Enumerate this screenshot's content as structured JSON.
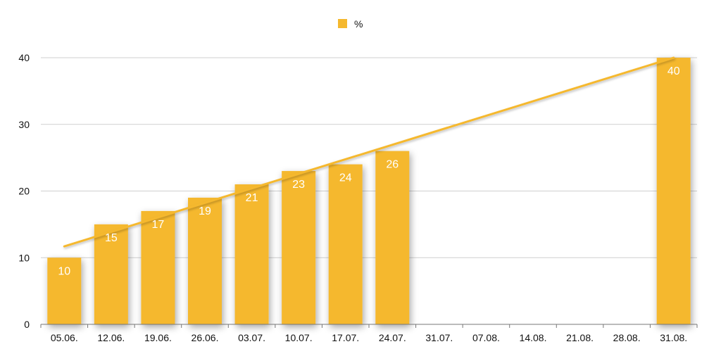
{
  "chart_data": {
    "type": "bar",
    "categories": [
      "05.06.",
      "12.06.",
      "19.06.",
      "26.06.",
      "03.07.",
      "10.07.",
      "17.07.",
      "24.07.",
      "31.07.",
      "07.08.",
      "14.08.",
      "21.08.",
      "28.08.",
      "31.08."
    ],
    "series": [
      {
        "name": "%",
        "values": [
          10,
          15,
          17,
          19,
          21,
          23,
          24,
          26,
          null,
          null,
          null,
          null,
          null,
          40
        ],
        "color": "#F5B82E"
      }
    ],
    "trendline": {
      "type": "linear",
      "from": {
        "category": "05.06.",
        "value": 11.7
      },
      "to": {
        "category": "31.08.",
        "value": 40
      },
      "color": "#F5B82E"
    },
    "ylim": [
      0,
      40
    ],
    "yticks": [
      0,
      10,
      20,
      30,
      40
    ],
    "grid": true,
    "legend": "top-center",
    "data_labels": true
  }
}
